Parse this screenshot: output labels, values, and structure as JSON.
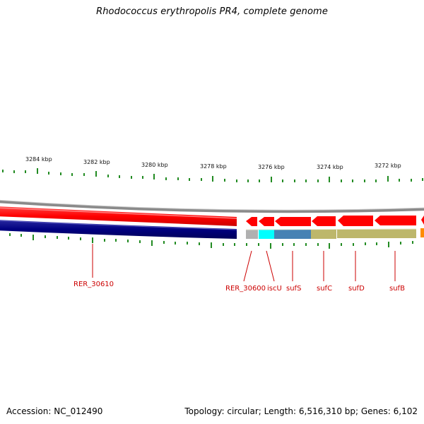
{
  "title": "Rhodococcus erythropolis PR4, complete genome",
  "footer": {
    "accession": "Accession: NC_012490",
    "info": "Topology: circular; Length: 6,516,310 bp; Genes: 6,102"
  },
  "ruler": {
    "labels": [
      "3284 kbp",
      "3282 kbp",
      "3280 kbp",
      "3278 kbp",
      "3276 kbp",
      "3274 kbp",
      "3272 kbp"
    ],
    "tick_color": "#228B22"
  },
  "genes": [
    {
      "name": "RER_30610",
      "color": "#ff0000",
      "track_color": "#000080"
    },
    {
      "name": "RER_30600",
      "color": "#ff0000",
      "track_color": "#b0b0b0"
    },
    {
      "name": "iscU",
      "color": "#ff0000",
      "track_color": "#00ffff"
    },
    {
      "name": "sufS",
      "color": "#ff0000",
      "track_color": "#4682b4"
    },
    {
      "name": "sufC",
      "color": "#ff0000",
      "track_color": "#bdb76b"
    },
    {
      "name": "sufD",
      "color": "#ff0000",
      "track_color": "#bdb76b"
    },
    {
      "name": "sufB",
      "color": "#ff0000",
      "track_color": "#bdb76b"
    }
  ],
  "colors": {
    "label_red": "#cc0000",
    "backbone": "#808080",
    "gene_red": "#ff0000"
  }
}
